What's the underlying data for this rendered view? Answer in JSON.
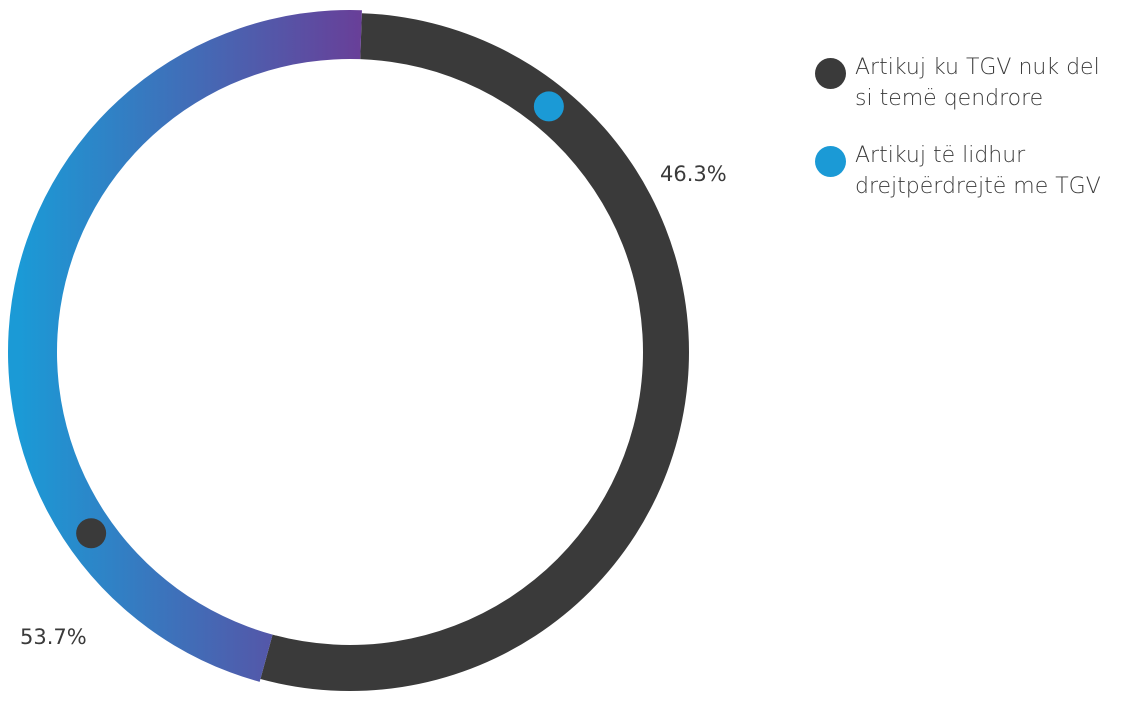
{
  "chart_data": {
    "type": "pie",
    "variant": "donut",
    "categories": [
      "Artikuj ku TGV nuk del si temë qendrore",
      "Artikuj të lidhur drejtpërdrejtë me TGV"
    ],
    "values": [
      53.7,
      46.3
    ],
    "value_labels": [
      "53.7%",
      "46.3%"
    ],
    "colors": [
      "#3a3a3a",
      "#1b9ad6"
    ],
    "gradient_colors": [
      "#1b9ad6",
      "#7a2a8a"
    ],
    "legend_position": "right",
    "title": "",
    "xlabel": "",
    "ylabel": ""
  },
  "legend": {
    "items": [
      {
        "label": "Artikuj ku TGV nuk del si temë qendrore",
        "color": "#3a3a3a"
      },
      {
        "label": "Artikuj të lidhur drejtpërdrejtë me TGV",
        "color": "#1b9ad6"
      }
    ]
  }
}
